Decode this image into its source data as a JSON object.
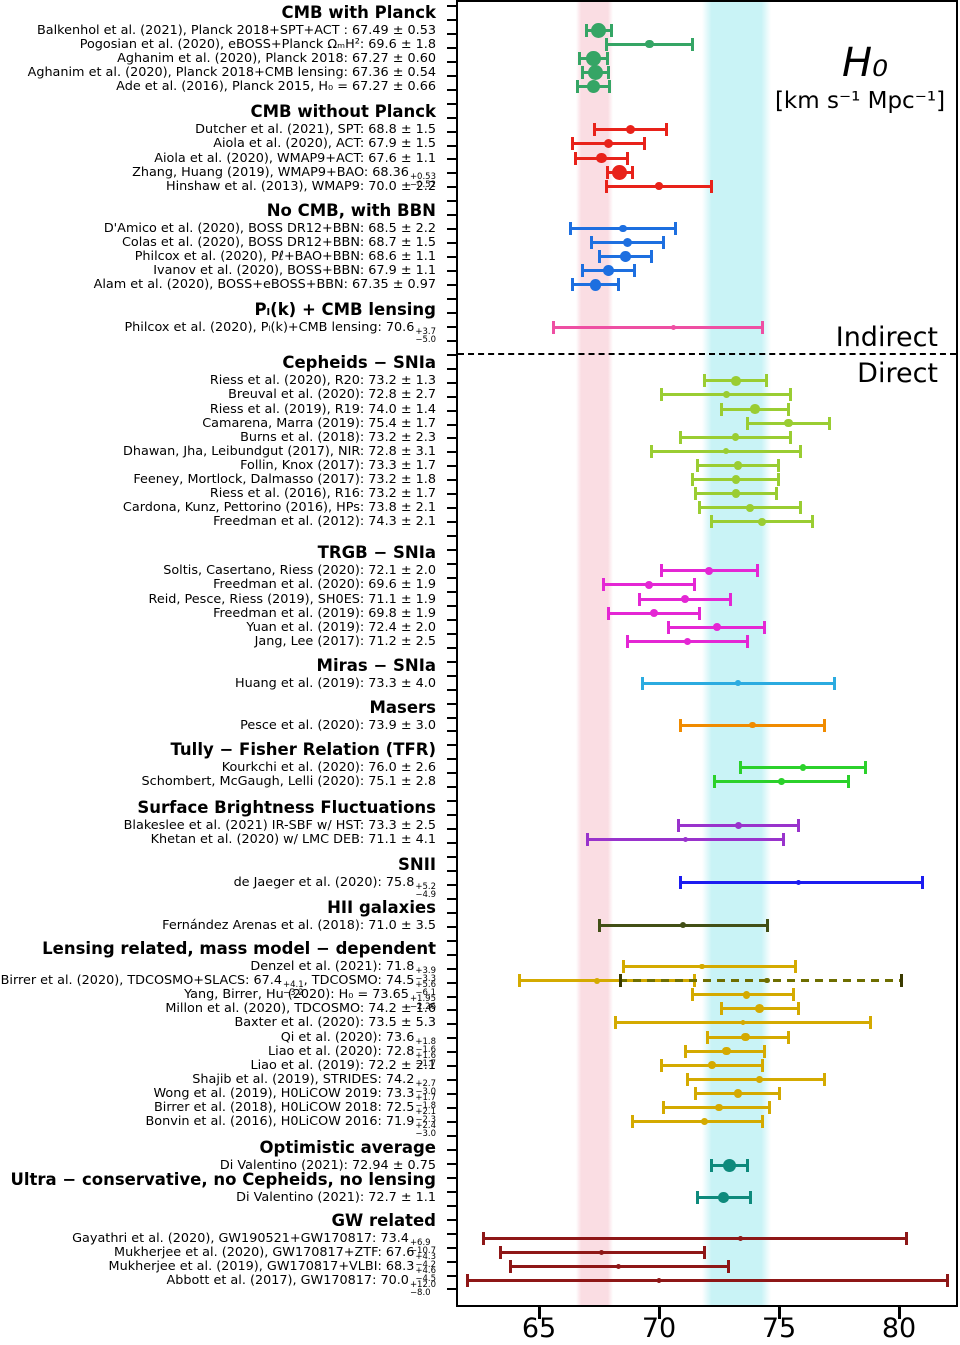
{
  "chart_data": {
    "type": "scatter",
    "subtype": "horizontal-errorbar-compilation",
    "title": "H₀",
    "units": "[km s⁻¹ Mpc⁻¹]",
    "indirect_label": "Indirect",
    "direct_label": "Direct",
    "xlabel": "H0 [km/s/Mpc]",
    "xlim": [
      61.6,
      82.5
    ],
    "x_ticks": [
      65,
      70,
      75,
      80
    ],
    "grid": false,
    "bands": [
      {
        "name": "planck-band",
        "from": 66.7,
        "to": 67.9,
        "color": "#fadde3"
      },
      {
        "name": "shoes-band",
        "from": 71.95,
        "to": 74.5,
        "color": "#c9f3f6"
      }
    ],
    "sections": [
      {
        "title": "CMB with Planck",
        "color": "#35a565",
        "items": [
          {
            "label": "Balkenhol et al. (2021), Planck 2018+SPT+ACT",
            "sep": " : ",
            "value": "67.49",
            "err": "0.53"
          },
          {
            "label": "Pogosian et al. (2020), eBOSS+Planck ΩₘH²",
            "value": "69.6",
            "err": "1.8"
          },
          {
            "label": "Aghanim et al. (2020), Planck 2018",
            "value": "67.27",
            "err": "0.60"
          },
          {
            "label": "Aghanim et al. (2020), Planck 2018+CMB lensing",
            "value": "67.36",
            "err": "0.54"
          },
          {
            "label": "Ade et al. (2016), Planck 2015",
            "sep": ", H₀ = ",
            "value": "67.27",
            "err": "0.66"
          }
        ]
      },
      {
        "title": "CMB without Planck",
        "color": "#e8221a",
        "items": [
          {
            "label": "Dutcher et al. (2021), SPT",
            "value": "68.8",
            "err": "1.5"
          },
          {
            "label": "Aiola et al. (2020), ACT",
            "value": "67.9",
            "err": "1.5"
          },
          {
            "label": "Aiola et al. (2020), WMAP9+ACT",
            "value": "67.6",
            "err": "1.1"
          },
          {
            "label": "Zhang, Huang (2019), WMAP9+BAO",
            "value": "68.36",
            "plus": "0.53",
            "minus": "0.52"
          },
          {
            "label": "Hinshaw et al. (2013), WMAP9",
            "value": "70.0",
            "err": "2.2"
          }
        ]
      },
      {
        "title": "No CMB,  with BBN",
        "color": "#1d6fe0",
        "items": [
          {
            "label": "D'Amico et al. (2020), BOSS DR12+BBN",
            "value": "68.5",
            "err": "2.2"
          },
          {
            "label": "Colas et al. (2020), BOSS DR12+BBN",
            "value": "68.7",
            "err": "1.5"
          },
          {
            "label": "Philcox et al. (2020), Pℓ+BAO+BBN",
            "value": "68.6",
            "err": "1.1"
          },
          {
            "label": "Ivanov et al. (2020), BOSS+BBN",
            "value": "67.9",
            "err": "1.1"
          },
          {
            "label": "Alam et al. (2020), BOSS+eBOSS+BBN",
            "value": "67.35",
            "err": "0.97"
          }
        ]
      },
      {
        "title": "Pₗ(k) + CMB lensing",
        "color": "#ee4fa3",
        "items": [
          {
            "label": "Philcox et al. (2020), Pₗ(k)+CMB lensing",
            "value": "70.6",
            "plus": "3.7",
            "minus": "5.0"
          }
        ]
      },
      {
        "title": "Cepheids − SNIa",
        "color": "#9acd32",
        "items": [
          {
            "label": "Riess et al. (2020), R20",
            "value": "73.2",
            "err": "1.3"
          },
          {
            "label": "Breuval et al. (2020)",
            "value": "72.8",
            "err": "2.7"
          },
          {
            "label": "Riess et al. (2019), R19",
            "value": "74.0",
            "err": "1.4"
          },
          {
            "label": "Camarena, Marra (2019)",
            "value": "75.4",
            "err": "1.7"
          },
          {
            "label": "Burns et al. (2018)",
            "value": "73.2",
            "err": "2.3"
          },
          {
            "label": "Dhawan, Jha, Leibundgut (2017), NIR",
            "value": "72.8",
            "err": "3.1"
          },
          {
            "label": "Follin, Knox (2017)",
            "value": "73.3",
            "err": "1.7"
          },
          {
            "label": "Feeney, Mortlock, Dalmasso (2017)",
            "value": "73.2",
            "err": "1.8"
          },
          {
            "label": "Riess et al. (2016), R16",
            "value": "73.2",
            "err": "1.7"
          },
          {
            "label": "Cardona, Kunz, Pettorino (2016), HPs",
            "value": "73.8",
            "err": "2.1"
          },
          {
            "label": "Freedman et al. (2012)",
            "value": "74.3",
            "err": "2.1"
          }
        ]
      },
      {
        "title": "TRGB − SNIa",
        "color": "#e426d4",
        "items": [
          {
            "label": "Soltis, Casertano, Riess (2020)",
            "value": "72.1",
            "err": "2.0"
          },
          {
            "label": "Freedman et al. (2020)",
            "value": "69.6",
            "err": "1.9"
          },
          {
            "label": "Reid, Pesce, Riess (2019), SH0ES",
            "value": "71.1",
            "err": "1.9"
          },
          {
            "label": "Freedman et al. (2019)",
            "value": "69.8",
            "err": "1.9"
          },
          {
            "label": "Yuan et al. (2019)",
            "value": "72.4",
            "err": "2.0"
          },
          {
            "label": "Jang, Lee (2017)",
            "value": "71.2",
            "err": "2.5"
          }
        ]
      },
      {
        "title": "Miras − SNIa",
        "color": "#2babe0",
        "items": [
          {
            "label": "Huang et al. (2019)",
            "value": "73.3",
            "err": "4.0"
          }
        ]
      },
      {
        "title": "Masers",
        "color": "#f08b00",
        "items": [
          {
            "label": "Pesce et al. (2020)",
            "value": "73.9",
            "err": "3.0"
          }
        ]
      },
      {
        "title": "Tully − Fisher Relation (TFR)",
        "color": "#2bd12b",
        "items": [
          {
            "label": "Kourkchi et al. (2020)",
            "value": "76.0",
            "err": "2.6"
          },
          {
            "label": "Schombert, McGaugh, Lelli (2020)",
            "value": "75.1",
            "err": "2.8"
          }
        ]
      },
      {
        "title": "Surface Brightness Fluctuations",
        "color": "#9933cc",
        "items": [
          {
            "label": "Blakeslee et al. (2021) IR-SBF w/ HST",
            "value": "73.3",
            "err": "2.5"
          },
          {
            "label": "Khetan et al. (2020) w/ LMC DEB",
            "value": "71.1",
            "err": "4.1"
          }
        ]
      },
      {
        "title": "SNII",
        "color": "#1c1cf0",
        "items": [
          {
            "label": "de Jaeger et al. (2020)",
            "value": "75.8",
            "plus": "5.2",
            "minus": "4.9"
          }
        ]
      },
      {
        "title": "HII galaxies",
        "color": "#424f16",
        "items": [
          {
            "label": "Fernández Arenas et al. (2018)",
            "value": "71.0",
            "err": "3.5"
          }
        ]
      },
      {
        "title": "Lensing related,  mass model − dependent",
        "color": "#d4aa00",
        "items": [
          {
            "label": "Denzel et al. (2021)",
            "value": "71.8",
            "plus": "3.9",
            "minus": "3.3"
          },
          {
            "label": "Birrer et al. (2020), TDCOSMO+SLACS",
            "value": "67.4",
            "plus": "4.1",
            "minus": "3.2",
            "extra": {
              "label": ", TDCOSMO",
              "value": "74.5",
              "plus": "5.6",
              "minus": "6.1",
              "style": "dashed",
              "color": "#6e6e00"
            }
          },
          {
            "label": "Yang, Birrer, Hu (2020)",
            "sep": ": H₀ = ",
            "value": "73.65",
            "plus": "1.95",
            "minus": "2.26"
          },
          {
            "label": "Millon et al. (2020), TDCOSMO",
            "value": "74.2",
            "err": "1.6"
          },
          {
            "label": "Baxter et al. (2020)",
            "value": "73.5",
            "err": "5.3"
          },
          {
            "label": "Qi et al. (2020)",
            "value": "73.6",
            "plus": "1.8",
            "minus": "1.6"
          },
          {
            "label": "Liao et al. (2020)",
            "value": "72.8",
            "plus": "1.6",
            "minus": "1.7"
          },
          {
            "label": "Liao et al. (2019)",
            "value": "72.2",
            "err": "2.1"
          },
          {
            "label": "Shajib et al. (2019), STRIDES",
            "value": "74.2",
            "plus": "2.7",
            "minus": "3.0"
          },
          {
            "label": "Wong et al. (2019), H0LiCOW 2019",
            "value": "73.3",
            "plus": "1.7",
            "minus": "1.8"
          },
          {
            "label": "Birrer et al. (2018), H0LiCOW 2018",
            "value": "72.5",
            "plus": "2.1",
            "minus": "2.3"
          },
          {
            "label": "Bonvin et al. (2016), H0LiCOW 2016",
            "value": "71.9",
            "plus": "2.4",
            "minus": "3.0"
          }
        ]
      },
      {
        "title": "Optimistic average",
        "color": "#0e8a7c",
        "items": [
          {
            "label": "Di Valentino (2021)",
            "value": "72.94",
            "err": "0.75"
          }
        ]
      },
      {
        "title": "Ultra − conservative,  no Cepheids,  no lensing",
        "color": "#0e8a7c",
        "items": [
          {
            "label": "Di Valentino (2021)",
            "value": "72.7",
            "err": "1.1"
          }
        ]
      },
      {
        "title": "GW related",
        "color": "#8e1717",
        "items": [
          {
            "label": "Gayathri et al. (2020), GW190521+GW170817",
            "value": "73.4",
            "plus": "6.9",
            "minus": "10.7"
          },
          {
            "label": "Mukherjee et al. (2020), GW170817+ZTF",
            "value": "67.6",
            "plus": "4.3",
            "minus": "4.2"
          },
          {
            "label": "Mukherjee et al. (2019), GW170817+VLBI",
            "value": "68.3",
            "plus": "4.6",
            "minus": "4.5"
          },
          {
            "label": "Abbott et al. (2017), GW170817",
            "value": "70.0",
            "plus": "12.0",
            "minus": "8.0"
          }
        ]
      }
    ]
  }
}
